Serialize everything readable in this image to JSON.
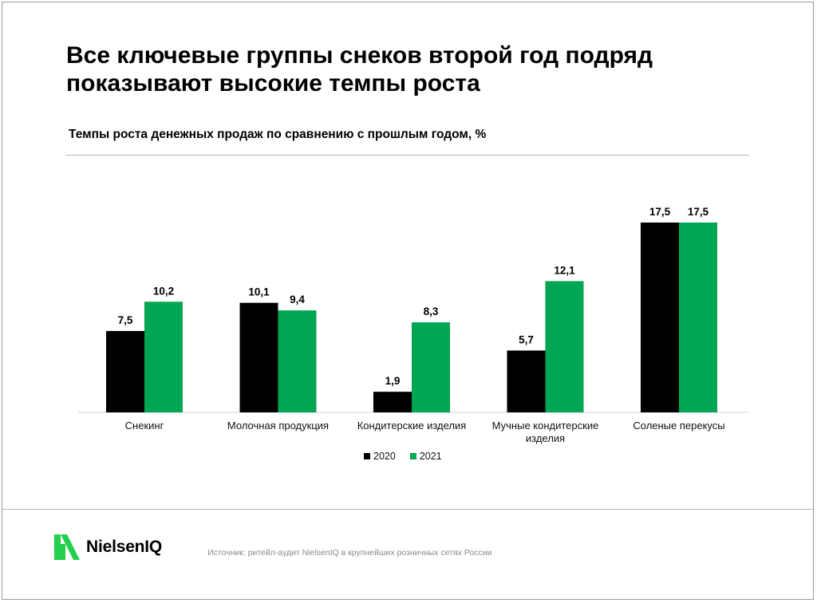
{
  "title": "Все ключевые группы снеков второй год подряд показывают высокие темпы роста",
  "subtitle": "Темпы роста денежных продаж по сравнению с прошлым годом, %",
  "source": "Источник: ритейл-аудит NielsenIQ в крупнейших розничных сетях России",
  "logo_text": "NielsenIQ",
  "colors": {
    "s2020": "#000000",
    "s2021": "#00a651",
    "brand_green": "#22d04b"
  },
  "chart_data": {
    "type": "bar",
    "title": "Темпы роста денежных продаж по сравнению с прошлым годом, %",
    "xlabel": "",
    "ylabel": "",
    "ylim": [
      0,
      17.5
    ],
    "grid": false,
    "legend_position": "bottom",
    "categories": [
      [
        "Снекинг"
      ],
      [
        "Молочная продукция"
      ],
      [
        "Кондитерские изделия"
      ],
      [
        "Мучные кондитерские",
        "изделия"
      ],
      [
        "Соленые перекусы"
      ]
    ],
    "series": [
      {
        "name": "2020",
        "values": [
          7.5,
          10.1,
          1.9,
          5.7,
          17.5
        ],
        "labels": [
          "7,5",
          "10,1",
          "1,9",
          "5,7",
          "17,5"
        ],
        "color": "#000000"
      },
      {
        "name": "2021",
        "values": [
          10.2,
          9.4,
          8.3,
          12.1,
          17.5
        ],
        "labels": [
          "10,2",
          "9,4",
          "8,3",
          "12,1",
          "17,5"
        ],
        "color": "#00a651"
      }
    ]
  }
}
